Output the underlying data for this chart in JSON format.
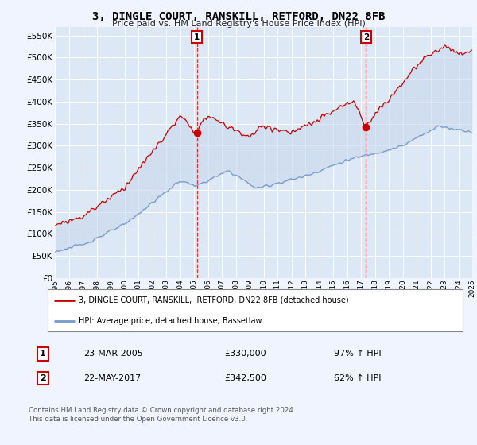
{
  "title": "3, DINGLE COURT, RANSKILL, RETFORD, DN22 8FB",
  "subtitle": "Price paid vs. HM Land Registry's House Price Index (HPI)",
  "background_color": "#f0f4ff",
  "plot_bg_color": "#dce8f5",
  "red_line_color": "#cc0000",
  "blue_line_color": "#7799cc",
  "fill_color": "#c8d8ee",
  "sale1_date_label": "23-MAR-2005",
  "sale1_price": 330000,
  "sale1_hpi": "97% ↑ HPI",
  "sale1_x": 2005.2,
  "sale1_y": 330000,
  "sale2_date_label": "22-MAY-2017",
  "sale2_price": 342500,
  "sale2_hpi": "62% ↑ HPI",
  "sale2_x": 2017.37,
  "sale2_y": 342500,
  "legend_red": "3, DINGLE COURT, RANSKILL,  RETFORD, DN22 8FB (detached house)",
  "legend_blue": "HPI: Average price, detached house, Bassetlaw",
  "footer": "Contains HM Land Registry data © Crown copyright and database right 2024.\nThis data is licensed under the Open Government Licence v3.0.",
  "ylim": [
    0,
    570000
  ],
  "yticks": [
    0,
    50000,
    100000,
    150000,
    200000,
    250000,
    300000,
    350000,
    400000,
    450000,
    500000,
    550000
  ],
  "xlim_start": 1995,
  "xlim_end": 2025
}
